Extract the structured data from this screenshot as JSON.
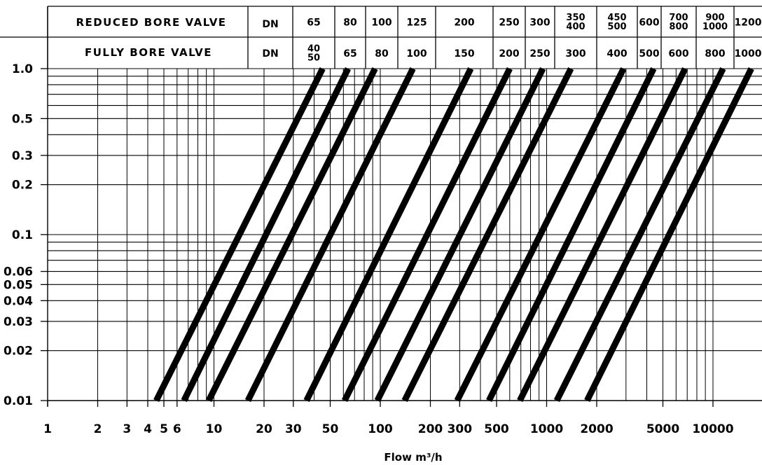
{
  "chart_data": {
    "type": "line",
    "x_scale": "log",
    "y_scale": "log",
    "xlim": [
      1,
      17000
    ],
    "ylim": [
      0.01,
      1.0
    ],
    "xlabel": "Flow m³/h",
    "ylabel": "",
    "grid": true,
    "header": {
      "reduced_label": "REDUCED BORE VALVE",
      "full_label": "FULLY BORE VALVE",
      "dn_label": "DN",
      "reduced_sizes": [
        [
          "65"
        ],
        [
          "80"
        ],
        [
          "100"
        ],
        [
          "125"
        ],
        [
          "200"
        ],
        [
          "250"
        ],
        [
          "300"
        ],
        [
          "350",
          "400"
        ],
        [
          "450",
          "500"
        ],
        [
          "600"
        ],
        [
          "700",
          "800"
        ],
        [
          "900",
          "1000"
        ],
        [
          "1200"
        ]
      ],
      "full_sizes": [
        [
          "40",
          "50"
        ],
        [
          "65"
        ],
        [
          "80"
        ],
        [
          "100"
        ],
        [
          "150"
        ],
        [
          "200"
        ],
        [
          "250"
        ],
        [
          "300"
        ],
        [
          "400"
        ],
        [
          "500"
        ],
        [
          "600"
        ],
        [
          "800"
        ],
        [
          "1000"
        ]
      ]
    },
    "x_ticks": [
      {
        "value": 1,
        "label": "1"
      },
      {
        "value": 2,
        "label": "2"
      },
      {
        "value": 3,
        "label": "3"
      },
      {
        "value": 4,
        "label": "4"
      },
      {
        "value": 5,
        "label": "5"
      },
      {
        "value": 6,
        "label": "6"
      },
      {
        "value": 10,
        "label": "10"
      },
      {
        "value": 20,
        "label": "20"
      },
      {
        "value": 30,
        "label": "30"
      },
      {
        "value": 50,
        "label": "50"
      },
      {
        "value": 100,
        "label": "100"
      },
      {
        "value": 200,
        "label": "200"
      },
      {
        "value": 300,
        "label": "300"
      },
      {
        "value": 500,
        "label": "500"
      },
      {
        "value": 1000,
        "label": "1000"
      },
      {
        "value": 2000,
        "label": "2000"
      },
      {
        "value": 5000,
        "label": "5000"
      },
      {
        "value": 10000,
        "label": "10000"
      }
    ],
    "y_ticks": [
      {
        "value": 0.01,
        "label": "0.01"
      },
      {
        "value": 0.02,
        "label": "0.02"
      },
      {
        "value": 0.03,
        "label": "0.03"
      },
      {
        "value": 0.04,
        "label": "0.04"
      },
      {
        "value": 0.05,
        "label": "0.05"
      },
      {
        "value": 0.06,
        "label": "0.06"
      },
      {
        "value": 0.1,
        "label": "0.1"
      },
      {
        "value": 0.2,
        "label": "0.2"
      },
      {
        "value": 0.3,
        "label": "0.3"
      },
      {
        "value": 0.5,
        "label": "0.5"
      },
      {
        "value": 1.0,
        "label": "1.0"
      }
    ],
    "x_grid": [
      2,
      3,
      4,
      5,
      6,
      7,
      8,
      9,
      10,
      20,
      30,
      40,
      50,
      60,
      70,
      80,
      90,
      100,
      200,
      300,
      400,
      500,
      600,
      700,
      800,
      900,
      1000,
      2000,
      3000,
      4000,
      5000,
      6000,
      7000,
      8000,
      9000,
      10000
    ],
    "y_grid": [
      0.01,
      0.02,
      0.03,
      0.04,
      0.05,
      0.06,
      0.07,
      0.08,
      0.09,
      0.1,
      0.2,
      0.3,
      0.4,
      0.5,
      0.6,
      0.7,
      0.8,
      0.9,
      1.0
    ],
    "series": [
      {
        "values": [
          [
            4.5,
            0.01
          ],
          [
            45,
            1.0
          ]
        ]
      },
      {
        "values": [
          [
            6.6,
            0.01
          ],
          [
            64,
            1.0
          ]
        ]
      },
      {
        "values": [
          [
            9.3,
            0.01
          ],
          [
            93,
            1.0
          ]
        ]
      },
      {
        "values": [
          [
            16,
            0.01
          ],
          [
            157,
            1.0
          ]
        ]
      },
      {
        "values": [
          [
            36,
            0.01
          ],
          [
            350,
            1.0
          ]
        ]
      },
      {
        "values": [
          [
            61,
            0.01
          ],
          [
            600,
            1.0
          ]
        ]
      },
      {
        "values": [
          [
            96,
            0.01
          ],
          [
            950,
            1.0
          ]
        ]
      },
      {
        "values": [
          [
            140,
            0.01
          ],
          [
            1400,
            1.0
          ]
        ]
      },
      {
        "values": [
          [
            290,
            0.01
          ],
          [
            2900,
            1.0
          ]
        ]
      },
      {
        "values": [
          [
            450,
            0.01
          ],
          [
            4400,
            1.0
          ]
        ]
      },
      {
        "values": [
          [
            690,
            0.01
          ],
          [
            6800,
            1.0
          ]
        ]
      },
      {
        "values": [
          [
            1150,
            0.01
          ],
          [
            11500,
            1.0
          ]
        ]
      },
      {
        "values": [
          [
            1750,
            0.01
          ],
          [
            17000,
            1.0
          ]
        ]
      }
    ]
  }
}
